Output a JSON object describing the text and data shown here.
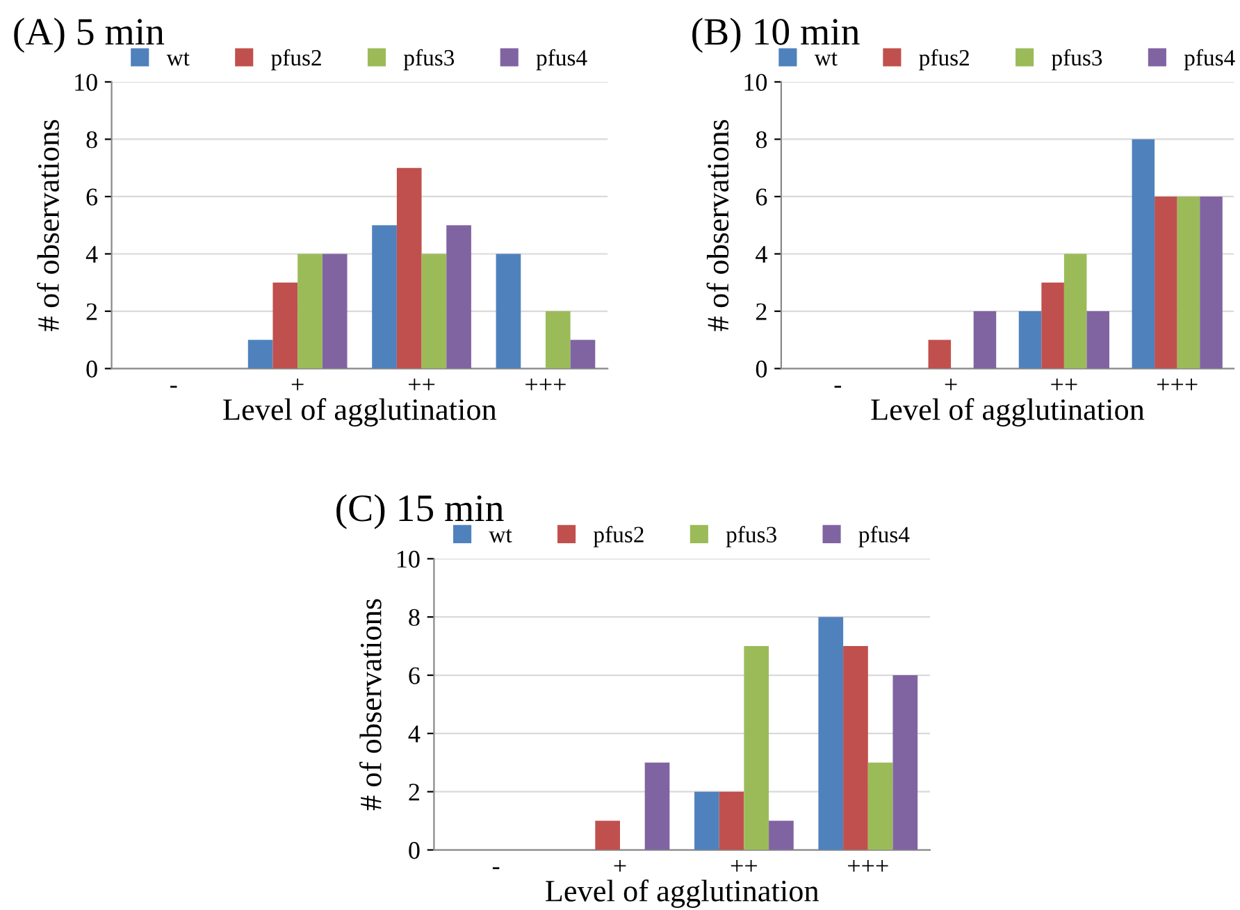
{
  "chart_data": [
    {
      "type": "bar",
      "title": "(A) 5 min",
      "xlabel": "Level of agglutination",
      "ylabel": "# of observations",
      "categories": [
        "-",
        "+",
        "++",
        "+++"
      ],
      "series": [
        {
          "name": "wt",
          "color": "#4f81bd",
          "values": [
            0,
            1,
            5,
            4
          ]
        },
        {
          "name": "pfus2",
          "color": "#c0504d",
          "values": [
            0,
            3,
            7,
            0
          ]
        },
        {
          "name": "pfus3",
          "color": "#9bbb59",
          "values": [
            0,
            4,
            4,
            2
          ]
        },
        {
          "name": "pfus4",
          "color": "#8064a2",
          "values": [
            0,
            4,
            5,
            1
          ]
        }
      ],
      "ylim": [
        0,
        10
      ],
      "yticks": [
        0,
        2,
        4,
        6,
        8,
        10
      ],
      "grid": "y",
      "legend": "top"
    },
    {
      "type": "bar",
      "title": "(B) 10 min",
      "xlabel": "Level of agglutination",
      "ylabel": "# of observations",
      "categories": [
        "-",
        "+",
        "++",
        "+++"
      ],
      "series": [
        {
          "name": "wt",
          "color": "#4f81bd",
          "values": [
            0,
            0,
            2,
            8
          ]
        },
        {
          "name": "pfus2",
          "color": "#c0504d",
          "values": [
            0,
            1,
            3,
            6
          ]
        },
        {
          "name": "pfus3",
          "color": "#9bbb59",
          "values": [
            0,
            0,
            4,
            6
          ]
        },
        {
          "name": "pfus4",
          "color": "#8064a2",
          "values": [
            0,
            2,
            2,
            6
          ]
        }
      ],
      "ylim": [
        0,
        10
      ],
      "yticks": [
        0,
        2,
        4,
        6,
        8,
        10
      ],
      "grid": "y",
      "legend": "top"
    },
    {
      "type": "bar",
      "title": "(C) 15 min",
      "xlabel": "Level of agglutination",
      "ylabel": "# of observations",
      "categories": [
        "-",
        "+",
        "++",
        "+++"
      ],
      "series": [
        {
          "name": "wt",
          "color": "#4f81bd",
          "values": [
            0,
            0,
            2,
            8
          ]
        },
        {
          "name": "pfus2",
          "color": "#c0504d",
          "values": [
            0,
            1,
            2,
            7
          ]
        },
        {
          "name": "pfus3",
          "color": "#9bbb59",
          "values": [
            0,
            0,
            7,
            3
          ]
        },
        {
          "name": "pfus4",
          "color": "#8064a2",
          "values": [
            0,
            3,
            1,
            6
          ]
        }
      ],
      "ylim": [
        0,
        10
      ],
      "yticks": [
        0,
        2,
        4,
        6,
        8,
        10
      ],
      "grid": "y",
      "legend": "top"
    }
  ]
}
